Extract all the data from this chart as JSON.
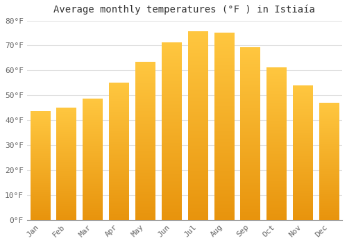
{
  "title": "Average monthly temperatures (°F ) in Istiaía",
  "months": [
    "Jan",
    "Feb",
    "Mar",
    "Apr",
    "May",
    "Jun",
    "Jul",
    "Aug",
    "Sep",
    "Oct",
    "Nov",
    "Dec"
  ],
  "values": [
    43.5,
    45.0,
    48.7,
    55.0,
    63.3,
    71.1,
    75.5,
    75.0,
    69.3,
    61.0,
    53.8,
    46.9
  ],
  "bar_color_top": "#FFBB33",
  "bar_color_bottom": "#E89010",
  "ylim": [
    0,
    80
  ],
  "yticks": [
    0,
    10,
    20,
    30,
    40,
    50,
    60,
    70,
    80
  ],
  "ytick_labels": [
    "0°F",
    "10°F",
    "20°F",
    "30°F",
    "40°F",
    "50°F",
    "60°F",
    "70°F",
    "80°F"
  ],
  "background_color": "#FFFFFF",
  "plot_bg_color": "#FFFFFF",
  "grid_color": "#E0E0E0",
  "title_fontsize": 10,
  "tick_fontsize": 8,
  "bar_width": 0.75
}
